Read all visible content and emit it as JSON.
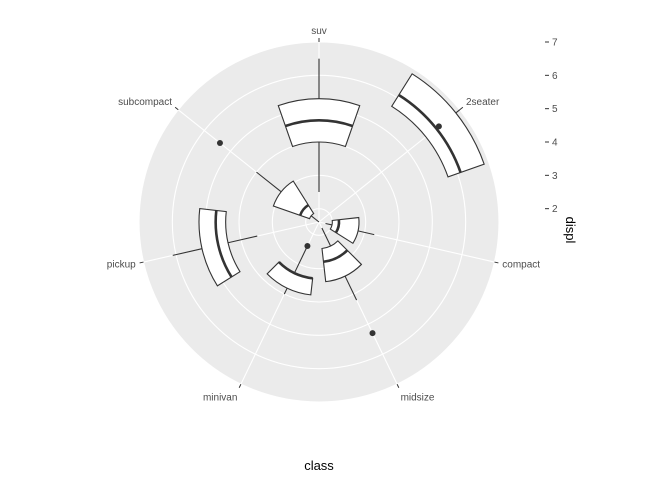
{
  "chart_data": {
    "type": "boxplot",
    "coord": "polar",
    "xlabel": "class",
    "ylabel": "displ",
    "categories": [
      "2seater",
      "compact",
      "midsize",
      "minivan",
      "pickup",
      "subcompact",
      "suv"
    ],
    "r_ticks": [
      2,
      3,
      4,
      5,
      6,
      7
    ],
    "r_range": [
      1.6,
      7.0
    ],
    "boxes": [
      {
        "category": "2seater",
        "lower": 5.7,
        "q1": 5.7,
        "median": 6.1,
        "q3": 6.85,
        "upper": 7.0,
        "outliers": [
          6.2
        ]
      },
      {
        "category": "compact",
        "lower": 1.8,
        "q1": 2.0,
        "median": 2.2,
        "q3": 2.8,
        "upper": 3.3,
        "outliers": []
      },
      {
        "category": "midsize",
        "lower": 1.8,
        "q1": 2.4,
        "median": 2.8,
        "q3": 3.4,
        "upper": 4.2,
        "outliers": [
          5.3
        ]
      },
      {
        "category": "minivan",
        "lower": 2.4,
        "q1": 3.3,
        "median": 3.3,
        "q3": 3.8,
        "upper": 4.0,
        "outliers": [
          2.4
        ]
      },
      {
        "category": "pickup",
        "lower": 3.5,
        "q1": 4.4,
        "median": 4.7,
        "q3": 5.2,
        "upper": 6.1,
        "outliers": []
      },
      {
        "category": "subcompact",
        "lower": 1.6,
        "q1": 1.9,
        "median": 2.2,
        "q3": 3.05,
        "upper": 4.0,
        "outliers": [
          5.4
        ]
      },
      {
        "category": "suv",
        "lower": 2.5,
        "q1": 4.0,
        "median": 4.65,
        "q3": 5.3,
        "upper": 6.5,
        "outliers": []
      }
    ],
    "grid": true,
    "legend": "none"
  }
}
